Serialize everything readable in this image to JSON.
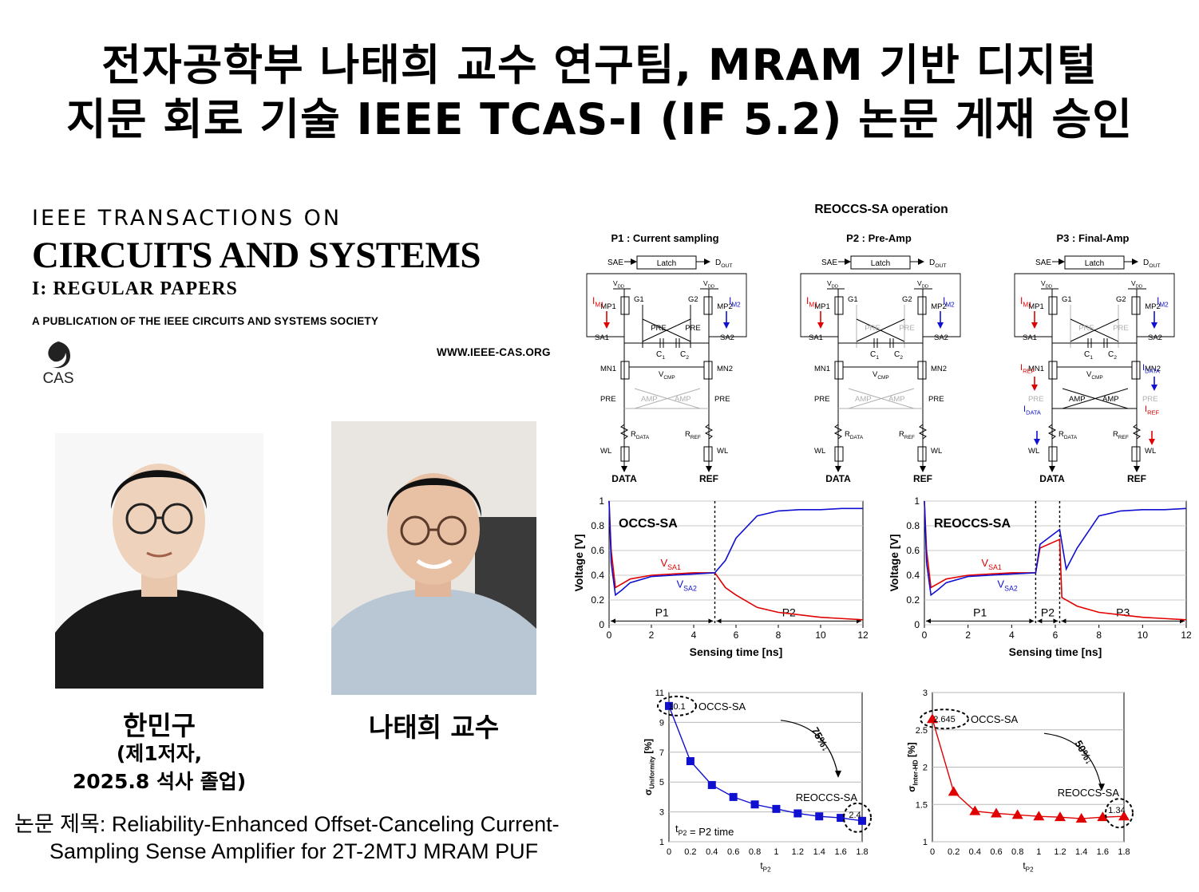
{
  "headline": {
    "line1": "전자공학부 나태희 교수 연구팀, MRAM 기반 디지털",
    "line2": "지문 회로 기술 IEEE TCAS-I (IF 5.2) 논문 게재 승인"
  },
  "journal": {
    "line1": "IEEE TRANSACTIONS ON",
    "line2": "CIRCUITS AND SYSTEMS",
    "line3": "I: REGULAR  PAPERS",
    "line4": "A PUBLICATION OF THE IEEE CIRCUITS AND SYSTEMS SOCIETY",
    "logo_text": "CAS",
    "url": "WWW.IEEE-CAS.ORG"
  },
  "people": {
    "student_name": "한민구",
    "student_role": "(제1저자,",
    "student_grad": "2025.8 석사 졸업)",
    "professor": "나태희 교수"
  },
  "paper": {
    "label": "논문 제목",
    "line1": ": Reliability-Enhanced Offset-Canceling Current-",
    "line2": "Sampling Sense Amplifier for 2T-2MTJ MRAM PUF"
  },
  "circuit": {
    "title": "REOCCS-SA operation",
    "phases": [
      "P1 : Current sampling",
      "P2 : Pre-Amp",
      "P3 : Final-Amp"
    ],
    "labels": {
      "sae": "SAE",
      "latch": "Latch",
      "dout": "DOUT",
      "vdd": "VDD",
      "mp1": "MP1",
      "mp2": "MP2",
      "g1": "G1",
      "g2": "G2",
      "pre": "PRE",
      "sa1": "SA1",
      "sa2": "SA2",
      "c1": "C1",
      "c2": "C2",
      "mn1": "MN1",
      "mn2": "MN2",
      "vcmp": "VCMP",
      "amp": "AMP",
      "rdata": "RDATA",
      "rref": "RREF",
      "wl": "WL",
      "data": "DATA",
      "ref": "REF",
      "im1": "IM1",
      "im2": "IM2",
      "iref": "IREF",
      "idata": "IDATA"
    },
    "colors": {
      "red": "#e00000",
      "blue": "#1010d0",
      "gray": "#b0b0b0"
    }
  },
  "chart_data": [
    {
      "type": "line",
      "title": "OCCS-SA",
      "xlabel": "Sensing time [ns]",
      "ylabel": "Voltage [V]",
      "xlim": [
        0,
        12
      ],
      "ylim": [
        0,
        1
      ],
      "xticks": [
        "0",
        "2",
        "4",
        "6",
        "8",
        "10",
        "12"
      ],
      "yticks": [
        "0",
        "0.2",
        "0.4",
        "0.6",
        "0.8",
        "1"
      ],
      "phase_boundaries": [
        5
      ],
      "phase_labels": [
        "P1",
        "P2"
      ],
      "series": [
        {
          "name": "VSA1",
          "color": "#e00000",
          "x": [
            0,
            0.1,
            0.3,
            0.6,
            1,
            2,
            3,
            4,
            5,
            5.5,
            6,
            7,
            8,
            9,
            10,
            11,
            12
          ],
          "y": [
            1,
            0.6,
            0.3,
            0.33,
            0.37,
            0.4,
            0.41,
            0.42,
            0.42,
            0.3,
            0.24,
            0.14,
            0.1,
            0.08,
            0.06,
            0.05,
            0.04
          ]
        },
        {
          "name": "VSA2",
          "color": "#1010d0",
          "x": [
            0,
            0.1,
            0.3,
            0.6,
            1,
            2,
            3,
            4,
            5,
            5.5,
            6,
            7,
            8,
            9,
            10,
            11,
            12
          ],
          "y": [
            1,
            0.5,
            0.24,
            0.28,
            0.34,
            0.39,
            0.4,
            0.41,
            0.42,
            0.52,
            0.7,
            0.88,
            0.92,
            0.93,
            0.93,
            0.94,
            0.94
          ]
        }
      ]
    },
    {
      "type": "line",
      "title": "REOCCS-SA",
      "xlabel": "Sensing time [ns]",
      "ylabel": "Voltage [V]",
      "xlim": [
        0,
        12
      ],
      "ylim": [
        0,
        1
      ],
      "xticks": [
        "0",
        "2",
        "4",
        "6",
        "8",
        "10",
        "12"
      ],
      "yticks": [
        "0",
        "0.2",
        "0.4",
        "0.6",
        "0.8",
        "1"
      ],
      "phase_boundaries": [
        5.1,
        6.2
      ],
      "phase_labels": [
        "P1",
        "P2",
        "P3"
      ],
      "series": [
        {
          "name": "VSA1",
          "color": "#e00000",
          "x": [
            0,
            0.1,
            0.3,
            0.6,
            1,
            2,
            3,
            4,
            5.1,
            5.3,
            6.2,
            6.3,
            7,
            8,
            9,
            10,
            11,
            12
          ],
          "y": [
            1,
            0.6,
            0.3,
            0.33,
            0.37,
            0.4,
            0.41,
            0.42,
            0.42,
            0.62,
            0.69,
            0.22,
            0.15,
            0.1,
            0.08,
            0.06,
            0.05,
            0.04
          ]
        },
        {
          "name": "VSA2",
          "color": "#1010d0",
          "x": [
            0,
            0.1,
            0.3,
            0.6,
            1,
            2,
            3,
            4,
            5.1,
            5.3,
            6.2,
            6.5,
            7,
            8,
            9,
            10,
            11,
            12
          ],
          "y": [
            1,
            0.5,
            0.24,
            0.28,
            0.34,
            0.39,
            0.4,
            0.41,
            0.42,
            0.65,
            0.77,
            0.45,
            0.62,
            0.88,
            0.92,
            0.93,
            0.93,
            0.94
          ]
        }
      ]
    },
    {
      "type": "line",
      "xlabel": "tP2 [ns]",
      "ylabel": "σUniformity [%]",
      "xlim": [
        0,
        1.8
      ],
      "ylim": [
        1,
        11
      ],
      "xticks": [
        "0",
        "0.2",
        "0.4",
        "0.6",
        "0.8",
        "1",
        "1.2",
        "1.4",
        "1.6",
        "1.8"
      ],
      "yticks": [
        "1",
        "3",
        "5",
        "7",
        "9",
        "11"
      ],
      "series": [
        {
          "color": "#1010d0",
          "x": [
            0,
            0.2,
            0.4,
            0.6,
            0.8,
            1.0,
            1.2,
            1.4,
            1.6,
            1.8
          ],
          "y": [
            10.1,
            6.4,
            4.8,
            4.0,
            3.5,
            3.2,
            2.9,
            2.7,
            2.6,
            2.4
          ]
        }
      ],
      "annotations": [
        "10.1",
        "OCCS-SA",
        "75%↓",
        "REOCCS-SA",
        "2.4",
        "tP2 = P2 time"
      ]
    },
    {
      "type": "line",
      "xlabel": "tP2 [ns]",
      "ylabel": "σInter-HD [%]",
      "xlim": [
        0,
        1.8
      ],
      "ylim": [
        1,
        3
      ],
      "xticks": [
        "0",
        "0.2",
        "0.4",
        "0.6",
        "0.8",
        "1",
        "1.2",
        "1.4",
        "1.6",
        "1.8"
      ],
      "yticks": [
        "1",
        "1.5",
        "2",
        "2.5",
        "3"
      ],
      "series": [
        {
          "color": "#e00000",
          "x": [
            0,
            0.2,
            0.4,
            0.6,
            0.8,
            1.0,
            1.2,
            1.4,
            1.6,
            1.8
          ],
          "y": [
            2.645,
            1.67,
            1.41,
            1.38,
            1.36,
            1.34,
            1.33,
            1.31,
            1.33,
            1.34
          ]
        }
      ],
      "annotations": [
        "2.645",
        "OCCS-SA",
        "50%↓",
        "REOCCS-SA",
        "1.34"
      ]
    }
  ]
}
